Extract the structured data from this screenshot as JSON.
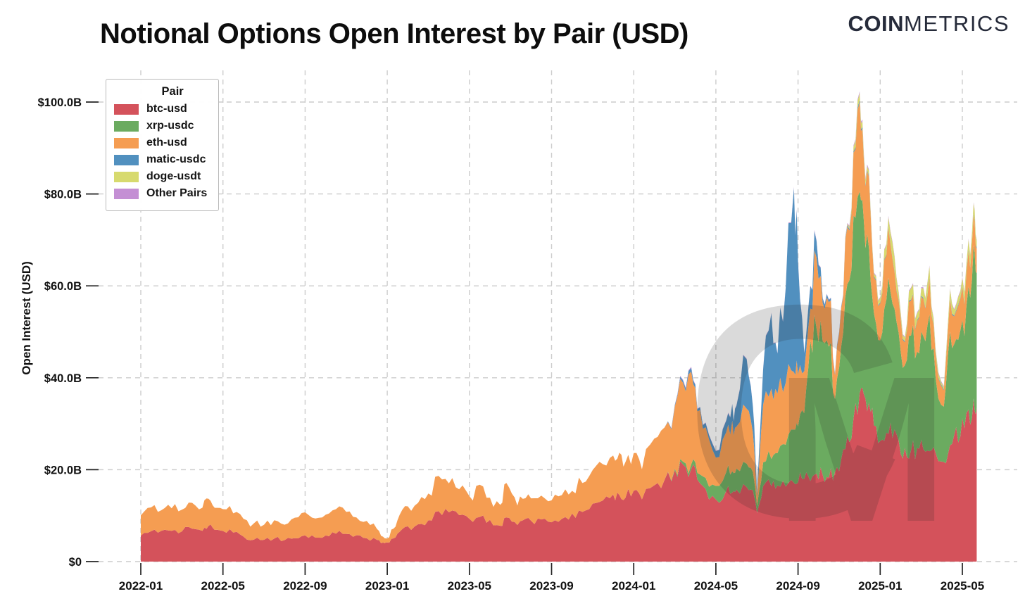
{
  "header": {
    "logo_coin": "COIN",
    "logo_metrics": "METRICS"
  },
  "chart_data": {
    "type": "area",
    "stacked": true,
    "title": "Notional Options Open Interest by Pair (USD)",
    "xlabel": "",
    "ylabel": "Open Interest (USD)",
    "grid": true,
    "legend": {
      "title": "Pair",
      "position": "upper left"
    },
    "ylim": [
      0,
      105
    ],
    "y_tick_values": [
      0,
      20,
      40,
      60,
      80,
      100
    ],
    "y_tick_labels": [
      "$0",
      "$20.0B",
      "$40.0B",
      "$60.0B",
      "$80.0B",
      "$100.0B"
    ],
    "x_tick_months": [
      0,
      4,
      8,
      12,
      16,
      20,
      24,
      28,
      32,
      36,
      40
    ],
    "x_tick_labels": [
      "2022-01",
      "2022-05",
      "2022-09",
      "2023-01",
      "2023-05",
      "2023-09",
      "2024-01",
      "2024-05",
      "2024-09",
      "2025-01",
      "2025-05"
    ],
    "series": [
      {
        "name": "btc-usd",
        "color": "#d4525b"
      },
      {
        "name": "xrp-usdc",
        "color": "#6bab60"
      },
      {
        "name": "eth-usd",
        "color": "#f59d52"
      },
      {
        "name": "matic-usdc",
        "color": "#5190bf"
      },
      {
        "name": "doge-usdt",
        "color": "#d7da6e"
      },
      {
        "name": "Other Pairs",
        "color": "#c48fd4"
      }
    ],
    "samples_format": [
      "months_since_2022_01",
      "btc-usd",
      "xrp-usdc",
      "eth-usd",
      "matic-usdc",
      "doge-usdt",
      "Other Pairs"
    ],
    "samples": [
      [
        0,
        5.8,
        0,
        4.4,
        0,
        0,
        0
      ],
      [
        0.5,
        6.3,
        0,
        5.0,
        0,
        0,
        0
      ],
      [
        1,
        6.6,
        0,
        4.6,
        0,
        0,
        0
      ],
      [
        1.5,
        7.0,
        0,
        5.0,
        0,
        0,
        0
      ],
      [
        2,
        6.6,
        0,
        4.6,
        0,
        0,
        0
      ],
      [
        2.5,
        7.4,
        0,
        5.4,
        0,
        0,
        0
      ],
      [
        3,
        7.0,
        0,
        4.8,
        0,
        0,
        0
      ],
      [
        3.3,
        7.6,
        0,
        6.0,
        0,
        0,
        0
      ],
      [
        3.6,
        7.2,
        0,
        4.8,
        0,
        0,
        0
      ],
      [
        4,
        6.9,
        0,
        4.9,
        0,
        0,
        0
      ],
      [
        4.5,
        6.5,
        0,
        4.3,
        0,
        0,
        0
      ],
      [
        5,
        5.4,
        0,
        3.8,
        0,
        0,
        0
      ],
      [
        5.5,
        4.8,
        0,
        3.4,
        0,
        0,
        0
      ],
      [
        6,
        4.6,
        0,
        3.2,
        0,
        0,
        0
      ],
      [
        6.5,
        5.0,
        0,
        4.0,
        0,
        0,
        0
      ],
      [
        7,
        4.7,
        0,
        3.5,
        0,
        0,
        0
      ],
      [
        7.5,
        5.2,
        0,
        4.4,
        0,
        0,
        0
      ],
      [
        8,
        5.6,
        0,
        4.8,
        0,
        0,
        0
      ],
      [
        8.5,
        5.3,
        0,
        4.3,
        0,
        0,
        0
      ],
      [
        9,
        5.8,
        0,
        4.6,
        0,
        0,
        0
      ],
      [
        9.5,
        6.2,
        0,
        5.2,
        0,
        0,
        0
      ],
      [
        10,
        5.9,
        0,
        4.7,
        0,
        0,
        0
      ],
      [
        10.5,
        5.6,
        0,
        3.8,
        0,
        0,
        0
      ],
      [
        11,
        5.2,
        0,
        3.6,
        0,
        0,
        0
      ],
      [
        11.5,
        4.6,
        0,
        2.4,
        0,
        0,
        0
      ],
      [
        11.8,
        4.1,
        0,
        1.3,
        0,
        0,
        0
      ],
      [
        12,
        4.0,
        0,
        0.9,
        0,
        0,
        0
      ],
      [
        12.3,
        5.2,
        0,
        2.2,
        0,
        0,
        0
      ],
      [
        12.6,
        6.2,
        0,
        3.6,
        0,
        0,
        0
      ],
      [
        13,
        7.4,
        0,
        4.4,
        0,
        0,
        0
      ],
      [
        13.5,
        8.0,
        0,
        4.8,
        0,
        0,
        0
      ],
      [
        14,
        8.6,
        0,
        5.6,
        0,
        0,
        0
      ],
      [
        14.5,
        11.4,
        0,
        7.4,
        0,
        0,
        0
      ],
      [
        15,
        10.6,
        0,
        6.6,
        0,
        0,
        0
      ],
      [
        15.5,
        9.8,
        0,
        5.6,
        0,
        0,
        0
      ],
      [
        16,
        9.0,
        0,
        5.0,
        0,
        0,
        0
      ],
      [
        16.5,
        9.6,
        0,
        6.8,
        0,
        0,
        0
      ],
      [
        17,
        8.8,
        0,
        4.8,
        0,
        0,
        0
      ],
      [
        17.5,
        8.0,
        0,
        4.4,
        0,
        0,
        0
      ],
      [
        17.8,
        9.6,
        0,
        7.4,
        0,
        0,
        0
      ],
      [
        18.2,
        8.8,
        0,
        5.2,
        0,
        0,
        0
      ],
      [
        18.6,
        8.6,
        0,
        4.6,
        0,
        0,
        0
      ],
      [
        19,
        8.7,
        0,
        5.0,
        0,
        0,
        0
      ],
      [
        19.5,
        9.0,
        0,
        5.4,
        0,
        0,
        0
      ],
      [
        20,
        8.9,
        0,
        4.6,
        0,
        0,
        0
      ],
      [
        20.5,
        9.4,
        0,
        5.2,
        0,
        0,
        0
      ],
      [
        21,
        10.0,
        0,
        5.0,
        0,
        0,
        0
      ],
      [
        21.5,
        11.2,
        0,
        6.6,
        0,
        0,
        0
      ],
      [
        22,
        12.2,
        0,
        7.2,
        0,
        0,
        0
      ],
      [
        22.5,
        13.6,
        0,
        7.8,
        0,
        0,
        0
      ],
      [
        23,
        14.4,
        0,
        8.2,
        0,
        0,
        0
      ],
      [
        23.3,
        15.2,
        0,
        9.2,
        0,
        0,
        0
      ],
      [
        23.6,
        14.6,
        0,
        8.0,
        0,
        0,
        0
      ],
      [
        24,
        15.0,
        0,
        8.0,
        0,
        0,
        0
      ],
      [
        24.4,
        14.0,
        0,
        6.6,
        0,
        0,
        0
      ],
      [
        25,
        16.0,
        0,
        10.0,
        0,
        0,
        0
      ],
      [
        25.5,
        18.0,
        0,
        12.0,
        0,
        0,
        0
      ],
      [
        26,
        19.5,
        0.3,
        14.2,
        0.3,
        0,
        0.1
      ],
      [
        26.4,
        20.5,
        0.6,
        17.4,
        0.5,
        0,
        0.2
      ],
      [
        26.8,
        20.0,
        1.0,
        19.5,
        0.8,
        0,
        0.2
      ],
      [
        27.1,
        18.0,
        1.5,
        13.0,
        0.5,
        0,
        0.1
      ],
      [
        27.5,
        15.5,
        2.4,
        10.6,
        1.0,
        0,
        0.1
      ],
      [
        28,
        13.5,
        3.0,
        6.5,
        1.5,
        0,
        0.1
      ],
      [
        28.5,
        15.0,
        4.0,
        9.0,
        2.5,
        0,
        0.1
      ],
      [
        28.8,
        15.5,
        4.5,
        10.5,
        3.5,
        0,
        0.1
      ],
      [
        29,
        15.5,
        4.5,
        9.0,
        4.5,
        0,
        0.1
      ],
      [
        29.5,
        16.0,
        5.0,
        12.0,
        11.0,
        0,
        0.1
      ],
      [
        29.8,
        15.0,
        4.0,
        9.0,
        6.0,
        0,
        0.1
      ],
      [
        30,
        11.0,
        1.5,
        2.0,
        0.8,
        0,
        0.1
      ],
      [
        30.3,
        16.0,
        5.0,
        13.0,
        8.0,
        0,
        0.1
      ],
      [
        30.7,
        17.0,
        6.0,
        15.0,
        17.0,
        0,
        0.1
      ],
      [
        31,
        16.5,
        7.0,
        12.5,
        9.0,
        0,
        0.1
      ],
      [
        31.4,
        17.0,
        9.0,
        14.0,
        20.0,
        0,
        0.1
      ],
      [
        31.8,
        17.0,
        12.0,
        13.0,
        39.0,
        0,
        0.2
      ],
      [
        32,
        17.5,
        12.5,
        11.0,
        24.0,
        0,
        0.2
      ],
      [
        32.3,
        18.0,
        14.0,
        9.0,
        4.0,
        0,
        0.1
      ],
      [
        32.6,
        18.0,
        30.0,
        7.0,
        5.0,
        0,
        0.1
      ],
      [
        32.9,
        18.5,
        33.0,
        15.0,
        3.5,
        0,
        0.2
      ],
      [
        33.2,
        19.0,
        30.0,
        8.0,
        1.0,
        0,
        0.1
      ],
      [
        33.5,
        19.0,
        28.0,
        9.5,
        0.5,
        0,
        0.1
      ],
      [
        33.8,
        19.5,
        16.0,
        5.0,
        0.3,
        0,
        0.1
      ],
      [
        34.1,
        22.0,
        25.0,
        8.0,
        0.3,
        0,
        0.1
      ],
      [
        34.4,
        26.0,
        34.0,
        12.0,
        0.3,
        0.3,
        0.2
      ],
      [
        34.7,
        30.0,
        42.0,
        14.0,
        0.3,
        1.0,
        0.3
      ],
      [
        35,
        36.0,
        44.0,
        20.0,
        0.4,
        1.6,
        0.3
      ],
      [
        35.2,
        37.0,
        38.0,
        13.0,
        0.3,
        1.0,
        0.3
      ],
      [
        35.45,
        35.0,
        33.0,
        16.0,
        0.2,
        1.0,
        0.3
      ],
      [
        35.7,
        30.0,
        25.0,
        8.0,
        0.2,
        0.6,
        0.2
      ],
      [
        36,
        25.0,
        22.0,
        8.0,
        0.2,
        1.0,
        0.2
      ],
      [
        36.3,
        27.0,
        29.0,
        10.0,
        0.2,
        2.0,
        0.2
      ],
      [
        36.6,
        28.0,
        30.0,
        10.0,
        0.2,
        3.5,
        0.3
      ],
      [
        36.9,
        26.0,
        24.0,
        7.0,
        0.2,
        1.5,
        0.2
      ],
      [
        37.2,
        24.0,
        18.0,
        5.0,
        0.2,
        0.8,
        0.2
      ],
      [
        37.5,
        25.0,
        26.0,
        8.0,
        0.2,
        2.5,
        0.2
      ],
      [
        37.8,
        24.5,
        22.0,
        6.5,
        0.2,
        1.5,
        0.2
      ],
      [
        38.1,
        24.0,
        25.0,
        8.0,
        0.2,
        2.0,
        0.2
      ],
      [
        38.4,
        25.0,
        30.0,
        7.5,
        0.2,
        2.5,
        0.2
      ],
      [
        38.7,
        23.0,
        17.0,
        5.0,
        0.2,
        1.0,
        0.2
      ],
      [
        39.1,
        22.0,
        12.0,
        3.5,
        0.2,
        0.5,
        0.2
      ],
      [
        39.4,
        26.0,
        24.0,
        7.0,
        0.2,
        2.0,
        0.2
      ],
      [
        39.7,
        28.0,
        19.0,
        6.0,
        0.2,
        1.2,
        0.2
      ],
      [
        40,
        30.0,
        21.0,
        7.0,
        0.2,
        1.8,
        0.2
      ],
      [
        40.3,
        32.0,
        26.0,
        8.0,
        0.2,
        2.2,
        0.2
      ],
      [
        40.55,
        34.0,
        32.0,
        6.5,
        0.2,
        2.3,
        0.2
      ],
      [
        40.7,
        34.5,
        30.0,
        5.5,
        0.2,
        1.5,
        0.2
      ]
    ]
  },
  "watermark": {
    "letters": "CM",
    "color": "#222222"
  },
  "colors": {
    "grid": "#cccccc",
    "tick": "#222222",
    "text": "#111111",
    "logo": "#262b3a"
  }
}
